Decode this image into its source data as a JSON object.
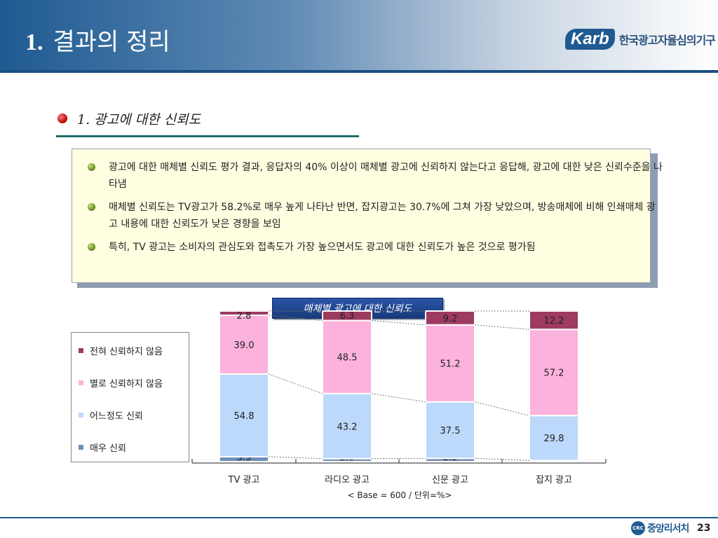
{
  "header": {
    "number": "1.",
    "title": "결과의 정리",
    "logo_mark": "Karb",
    "logo_text": "한국광고자율심의기구"
  },
  "section": {
    "title": "1. 광고에 대한 신뢰도"
  },
  "summary": {
    "items": [
      "광고에 대한 매체별 신뢰도 평가 결과, 응답자의 40% 이상이 매체별 광고에 신뢰하지 않는다고 응답해, 광고에 대한 낮은 신뢰수준을 나타냄",
      "매체별 신뢰도는 TV광고가 58.2%로 매우 높게 나타난 반면, 잡지광고는 30.7%에 그쳐 가장 낮았으며, 방송매체에 비해 인쇄매체 광고 내용에 대한 신뢰도가 낮은 경향을 보임",
      "특히, TV 광고는 소비자의 관심도와 접촉도가 가장 높으면서도 광고에 대한 신뢰도가 높은 것으로 평가됨"
    ]
  },
  "chart_data": {
    "type": "bar",
    "stacked": true,
    "percent_stacked": true,
    "title": "매체별 광고에 대한 신뢰도",
    "note": "< Base = 600 / 단위=%>",
    "categories": [
      "TV 광고",
      "라디오 광고",
      "신문 광고",
      "잡지 광고"
    ],
    "series": [
      {
        "name": "매우 신뢰",
        "color": "#6f8fb8",
        "values": [
          3.3,
          2.0,
          2.2,
          0.8
        ]
      },
      {
        "name": "어느정도 신뢰",
        "color": "#bcd8fa",
        "values": [
          54.8,
          43.2,
          37.5,
          29.8
        ]
      },
      {
        "name": "별로 신뢰하지 않음",
        "color": "#fbb2dc",
        "values": [
          39.0,
          48.5,
          51.2,
          57.2
        ]
      },
      {
        "name": "전혀 신뢰하지 않음",
        "color": "#9e3a60",
        "values": [
          2.8,
          6.3,
          9.2,
          12.2
        ]
      }
    ],
    "legend_order": [
      "전혀 신뢰하지 않음",
      "별로 신뢰하지 않음",
      "어느정도 신뢰",
      "매우 신뢰"
    ],
    "legend_position": "left",
    "grid": false
  },
  "footer": {
    "logo_badge": "CRC",
    "logo_text": "중앙리서치",
    "page_number": "23"
  }
}
